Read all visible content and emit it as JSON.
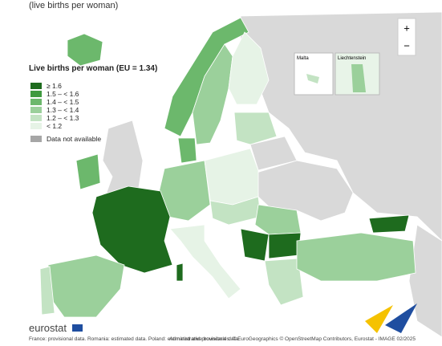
{
  "header": {
    "subtitle": "(live births per woman)"
  },
  "legend": {
    "title": "Live births per woman (EU = 1.34)",
    "items": [
      {
        "label": "≥ 1.6",
        "color": "#1e6b1e"
      },
      {
        "label": "1.5 – < 1.6",
        "color": "#3f9a3f"
      },
      {
        "label": "1.4 – < 1.5",
        "color": "#6cb86c"
      },
      {
        "label": "1.3 – < 1.4",
        "color": "#9bd09b"
      },
      {
        "label": "1.2 – < 1.3",
        "color": "#c3e3c3"
      },
      {
        "label": "< 1.2",
        "color": "#e6f3e6"
      }
    ],
    "na": {
      "label": "Data not available",
      "color": "#a6a6a6"
    }
  },
  "zoom": {
    "in": "+",
    "out": "−"
  },
  "insets": [
    "Malta",
    "Liechtenstein"
  ],
  "footer": {
    "logo": "eurostat",
    "note": "France: provisional data. Romania: estimated data. Poland: estimated and provisional data.",
    "credits": "Administrative boundaries: © EuroGeographics © OpenStreetMap Contributors, Eurostat - IMAGE 02/2025"
  }
}
